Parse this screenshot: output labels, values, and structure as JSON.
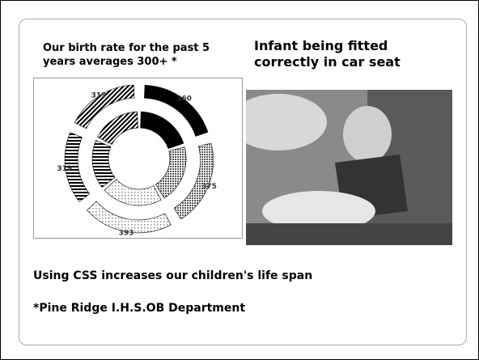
{
  "slide": {
    "chart_caption": "Our birth rate for the past  5 years averages 300+ *",
    "heading": "Infant being fitted correctly in car seat",
    "statement": "Using CSS increases our children's life span",
    "footnote": "*Pine Ridge I.H.S.OB Department"
  },
  "chart_data": {
    "type": "doughnut",
    "values": [
      360,
      375,
      393,
      319,
      319
    ],
    "colors": [
      "#000000",
      "#555555",
      "#888888",
      "#000000",
      "#000000"
    ]
  }
}
